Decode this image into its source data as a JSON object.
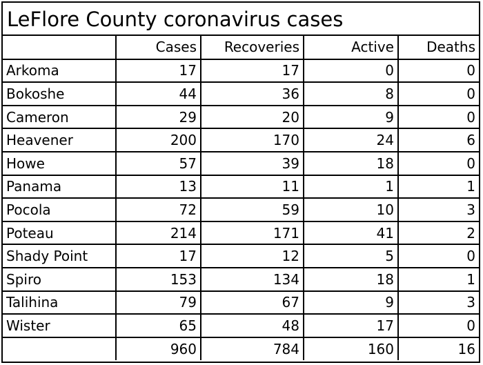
{
  "title": "LeFlore County coronavirus cases",
  "headers": [
    "",
    "Cases",
    "Recoveries",
    "Active",
    "Deaths"
  ],
  "rows": [
    {
      "name": "Arkoma",
      "cases": "17",
      "recoveries": "17",
      "active": "0",
      "deaths": "0"
    },
    {
      "name": "Bokoshe",
      "cases": "44",
      "recoveries": "36",
      "active": "8",
      "deaths": "0"
    },
    {
      "name": "Cameron",
      "cases": "29",
      "recoveries": "20",
      "active": "9",
      "deaths": "0"
    },
    {
      "name": "Heavener",
      "cases": "200",
      "recoveries": "170",
      "active": "24",
      "deaths": "6"
    },
    {
      "name": "Howe",
      "cases": "57",
      "recoveries": "39",
      "active": "18",
      "deaths": "0"
    },
    {
      "name": "Panama",
      "cases": "13",
      "recoveries": "11",
      "active": "1",
      "deaths": "1"
    },
    {
      "name": "Pocola",
      "cases": "72",
      "recoveries": "59",
      "active": "10",
      "deaths": "3"
    },
    {
      "name": "Poteau",
      "cases": "214",
      "recoveries": "171",
      "active": "41",
      "deaths": "2"
    },
    {
      "name": "Shady Point",
      "cases": "17",
      "recoveries": "12",
      "active": "5",
      "deaths": "0"
    },
    {
      "name": "Spiro",
      "cases": "153",
      "recoveries": "134",
      "active": "18",
      "deaths": "1"
    },
    {
      "name": "Talihina",
      "cases": "79",
      "recoveries": "67",
      "active": "9",
      "deaths": "3"
    },
    {
      "name": "Wister",
      "cases": "65",
      "recoveries": "48",
      "active": "17",
      "deaths": "0"
    }
  ],
  "totals": {
    "name": "",
    "cases": "960",
    "recoveries": "784",
    "active": "160",
    "deaths": "16"
  }
}
